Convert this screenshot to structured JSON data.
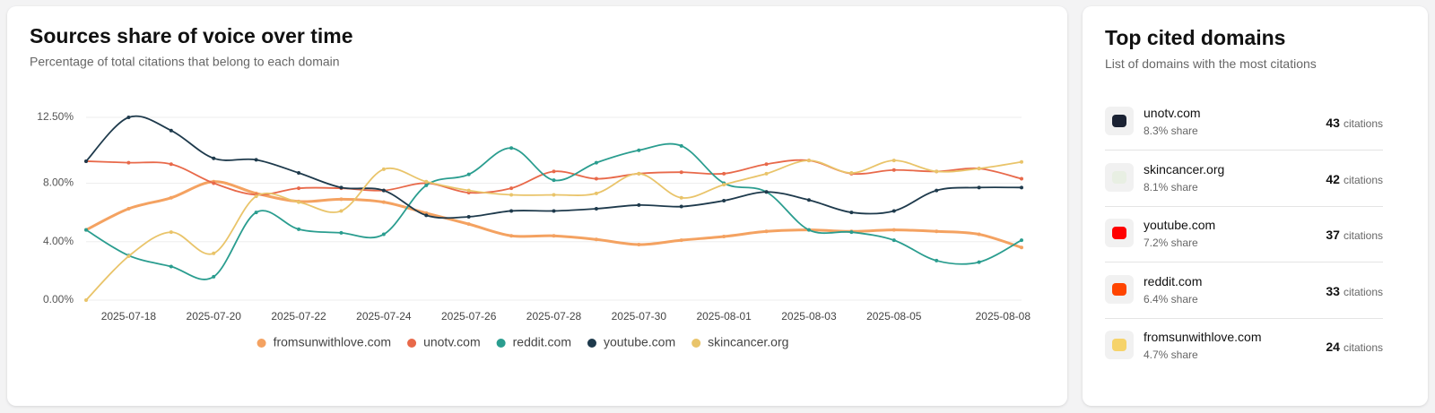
{
  "chart_data": {
    "type": "line",
    "title": "Sources share of voice over time",
    "subtitle": "Percentage of total citations that belong to each domain",
    "categories": [
      null,
      "2025-07-18",
      null,
      "2025-07-20",
      null,
      "2025-07-22",
      null,
      "2025-07-24",
      null,
      "2025-07-26",
      null,
      "2025-07-28",
      null,
      "2025-07-30",
      null,
      "2025-08-01",
      null,
      "2025-08-03",
      null,
      "2025-08-05",
      null,
      null,
      "2025-08-08"
    ],
    "ylim": [
      0,
      12.5
    ],
    "yticks": [
      {
        "value": 0,
        "label": "0.00%"
      },
      {
        "value": 4,
        "label": "4.00%"
      },
      {
        "value": 8,
        "label": "8.00%"
      },
      {
        "value": 12.5,
        "label": "12.50%"
      }
    ],
    "grid": true,
    "legend": "bottom",
    "series": [
      {
        "name": "fromsunwithlove.com",
        "color": "#f4a261",
        "values": [
          4.8,
          6.25,
          7.0,
          8.1,
          7.3,
          6.75,
          6.9,
          6.7,
          5.95,
          5.2,
          4.4,
          4.4,
          4.15,
          3.8,
          4.1,
          4.35,
          4.7,
          4.8,
          4.7,
          4.8,
          4.7,
          4.5,
          3.6
        ]
      },
      {
        "name": "unotv.com",
        "color": "#e8694a",
        "values": [
          9.5,
          9.4,
          9.3,
          8.0,
          7.2,
          7.65,
          7.65,
          7.5,
          8.0,
          7.35,
          7.65,
          8.8,
          8.3,
          8.65,
          8.75,
          8.65,
          9.3,
          9.55,
          8.65,
          8.9,
          8.8,
          9.0,
          8.3
        ]
      },
      {
        "name": "reddit.com",
        "color": "#2a9d8f",
        "values": [
          4.8,
          3.05,
          2.3,
          1.6,
          6.0,
          4.85,
          4.6,
          4.5,
          7.85,
          8.6,
          10.4,
          8.2,
          9.4,
          10.25,
          10.55,
          8.0,
          7.4,
          4.8,
          4.65,
          4.1,
          2.7,
          2.6,
          4.1
        ]
      },
      {
        "name": "youtube.com",
        "color": "#1e3a4c",
        "values": [
          9.5,
          12.5,
          11.6,
          9.7,
          9.6,
          8.7,
          7.7,
          7.5,
          5.8,
          5.7,
          6.1,
          6.1,
          6.25,
          6.5,
          6.4,
          6.8,
          7.4,
          6.85,
          6.0,
          6.1,
          7.5,
          7.7,
          7.7
        ]
      },
      {
        "name": "skincancer.org",
        "color": "#e9c46a",
        "values": [
          0,
          3.0,
          4.65,
          3.2,
          7.1,
          6.7,
          6.1,
          8.95,
          8.1,
          7.5,
          7.2,
          7.2,
          7.3,
          8.65,
          7.0,
          7.9,
          8.65,
          9.55,
          8.7,
          9.55,
          8.8,
          9.0,
          9.45
        ]
      }
    ]
  },
  "domains": {
    "title": "Top cited domains",
    "subtitle": "List of domains with the most citations",
    "count_unit": "citations",
    "items": [
      {
        "name": "unotv.com",
        "share": "8.3% share",
        "count": 43
      },
      {
        "name": "skincancer.org",
        "share": "8.1% share",
        "count": 42
      },
      {
        "name": "youtube.com",
        "share": "7.2% share",
        "count": 37
      },
      {
        "name": "reddit.com",
        "share": "6.4% share",
        "count": 33
      },
      {
        "name": "fromsunwithlove.com",
        "share": "4.7% share",
        "count": 24
      }
    ]
  }
}
